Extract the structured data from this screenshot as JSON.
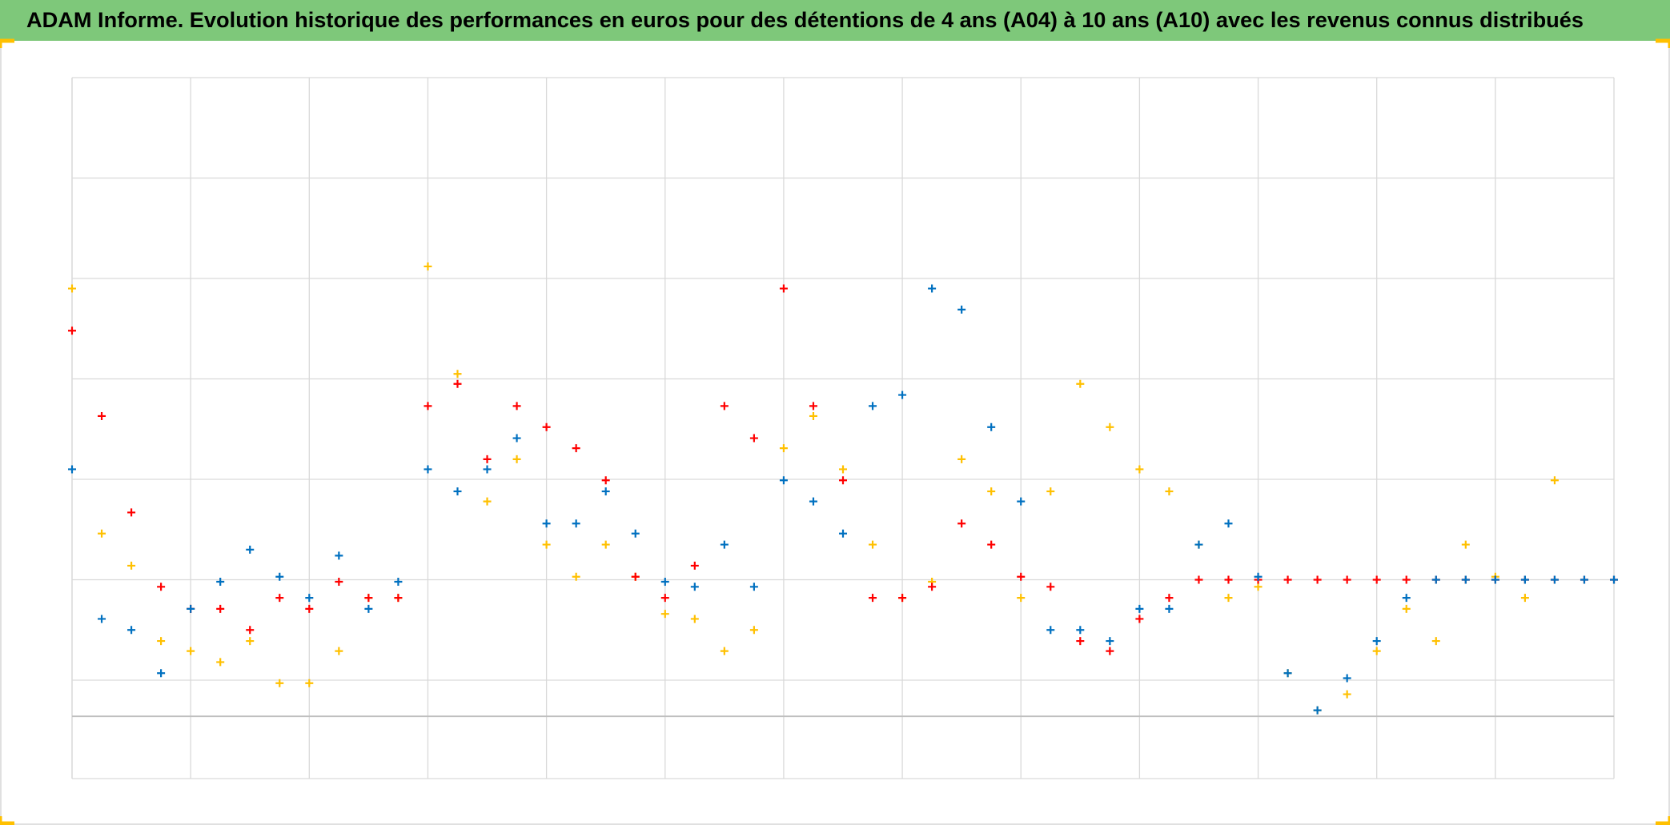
{
  "chart_data": {
    "type": "scatter",
    "title": "ADAM Informe. Evolution historique des performances en euros pour des détentions de 4 ans (A04) à 10 ans (A10) avec les revenus connus distribués",
    "xlim": [
      0,
      13
    ],
    "xticks": [
      0,
      1,
      2,
      3,
      4,
      5,
      6,
      7,
      8,
      9,
      10,
      11,
      12,
      13
    ],
    "ylim": [
      -0.98,
      6
    ],
    "yticks": [
      0,
      1,
      2,
      3,
      4,
      5,
      6
    ],
    "x_axis_value": -0.36,
    "grid": true,
    "x": [
      0,
      0.25,
      0.5,
      0.75,
      1,
      1.25,
      1.5,
      1.75,
      2,
      2.25,
      2.5,
      2.75,
      3,
      3.25,
      3.5,
      3.75,
      4,
      4.25,
      4.5,
      4.75,
      5,
      5.25,
      5.5,
      5.75,
      6,
      6.25,
      6.5,
      6.75,
      7,
      7.25,
      7.5,
      7.75,
      8,
      8.25,
      8.5,
      8.75,
      9,
      9.25,
      9.5,
      9.75,
      10,
      10.25,
      10.5,
      10.75,
      11,
      11.25,
      11.5,
      11.75,
      12,
      12.25,
      12.5,
      12.75,
      13
    ],
    "series": [
      {
        "color": "#ffc000",
        "values": [
          3.9,
          1.46,
          1.14,
          0.39,
          0.29,
          0.18,
          0.39,
          -0.03,
          -0.03,
          0.29,
          0.82,
          0.82,
          4.12,
          3.05,
          1.78,
          2.2,
          1.35,
          1.03,
          1.35,
          1.03,
          0.66,
          0.61,
          0.29,
          0.5,
          2.31,
          2.63,
          2.1,
          1.35,
          0.82,
          0.98,
          2.2,
          1.88,
          0.82,
          1.88,
          2.95,
          2.52,
          2.1,
          1.88,
          1.35,
          0.82,
          0.93,
          0.07,
          -0.3,
          -0.14,
          0.29,
          0.71,
          0.39,
          1.35,
          1.03,
          0.82,
          1.99,
          null,
          null
        ]
      },
      {
        "color": "#ff0000",
        "values": [
          3.48,
          2.63,
          1.67,
          0.93,
          0.71,
          0.71,
          0.5,
          0.82,
          0.71,
          0.98,
          0.82,
          0.82,
          2.73,
          2.95,
          2.2,
          2.73,
          2.52,
          2.31,
          1.99,
          1.03,
          0.82,
          1.14,
          2.73,
          2.41,
          3.9,
          2.73,
          1.99,
          0.82,
          0.82,
          0.93,
          1.56,
          1.35,
          1.03,
          0.93,
          0.39,
          0.29,
          0.61,
          0.82,
          1.0,
          1.0,
          1.0,
          1.0,
          1.0,
          1.0,
          1.0,
          1.0,
          1.0,
          1.0,
          1.0,
          1.0,
          1.0,
          1.0,
          1.0
        ]
      },
      {
        "color": "#0070c0",
        "values": [
          2.1,
          0.61,
          0.5,
          0.07,
          0.71,
          0.98,
          1.3,
          1.03,
          0.82,
          1.24,
          0.71,
          0.98,
          2.1,
          1.88,
          2.1,
          2.41,
          1.56,
          1.56,
          1.88,
          1.46,
          0.98,
          0.93,
          1.35,
          0.93,
          1.99,
          1.78,
          1.46,
          2.73,
          2.84,
          3.9,
          3.69,
          2.52,
          1.78,
          0.5,
          0.5,
          0.39,
          0.71,
          0.71,
          1.35,
          1.56,
          1.03,
          0.07,
          -0.3,
          0.02,
          0.39,
          0.82,
          1.0,
          1.0,
          1.0,
          1.0,
          1.0,
          1.0,
          1.0
        ]
      }
    ]
  }
}
